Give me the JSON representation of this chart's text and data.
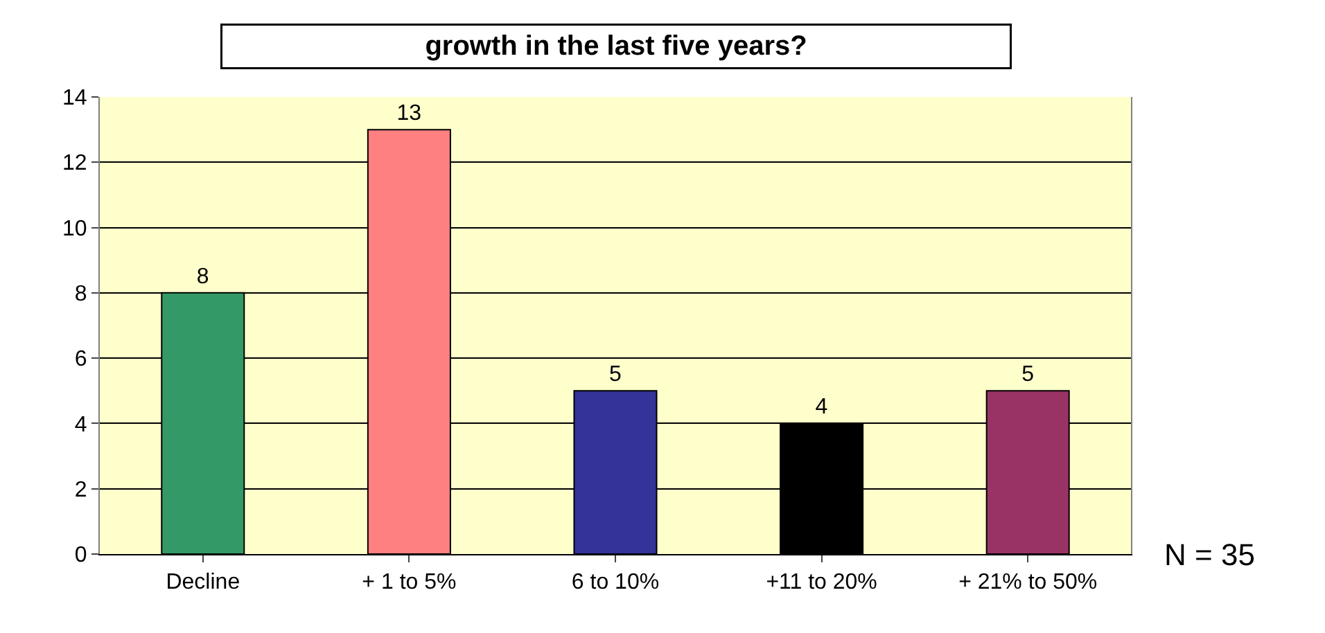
{
  "chart_data": {
    "type": "bar",
    "title": "growth in the last five years?",
    "categories": [
      "Decline",
      "+ 1 to 5%",
      "6 to 10%",
      "+11 to 20%",
      "+ 21% to 50%"
    ],
    "values": [
      8,
      13,
      5,
      4,
      5
    ],
    "colors": [
      "#339966",
      "#ff8080",
      "#333399",
      "#000000",
      "#993366"
    ],
    "ylim": [
      0,
      14
    ],
    "yticks": [
      0,
      2,
      4,
      6,
      8,
      10,
      12,
      14
    ],
    "grid": "y",
    "data_labels": true,
    "annotations": [
      "N = 35"
    ]
  }
}
